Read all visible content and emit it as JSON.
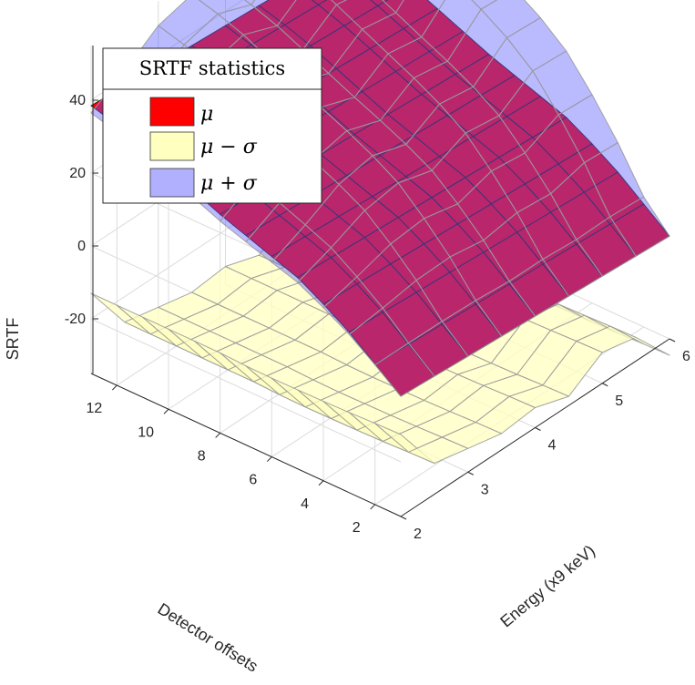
{
  "chart_data": {
    "type": "surface3d",
    "title": "",
    "xlabel": "Energy (x9 keV)",
    "ylabel": "Detector offsets",
    "zlabel": "SRTF",
    "x_ticks": [
      "2",
      "3",
      "4",
      "5",
      "6"
    ],
    "y_ticks": [
      "2",
      "4",
      "6",
      "8",
      "10",
      "12"
    ],
    "z_ticks": [
      "-20",
      "0",
      "20",
      "40"
    ],
    "xlim": [
      2,
      6
    ],
    "ylim": [
      1,
      13
    ],
    "zlim": [
      -35,
      55
    ],
    "energy": [
      2,
      2.5,
      3,
      3.5,
      4,
      4.5,
      5,
      5.5,
      6
    ],
    "offsets": [
      1,
      2,
      3,
      4,
      5,
      6,
      7,
      8,
      9,
      10,
      11,
      12,
      13
    ],
    "legend": {
      "title": "SRTF statistics",
      "entries": [
        "μ",
        "μ − σ",
        "μ + σ"
      ]
    },
    "series": [
      {
        "name": "μ",
        "color": "#ff0000",
        "mean_by_offset": [
          -2,
          3.5,
          9,
          13.5,
          17.5,
          20,
          22.5,
          25,
          28,
          31,
          34,
          36.5,
          38.5
        ],
        "energy_trend": [
          0,
          -0.6,
          -1.2,
          -1.8,
          -2.4,
          -3.0,
          -3.6,
          -4.2,
          -4.8
        ]
      },
      {
        "name": "μ − σ",
        "color": "#ffffc0",
        "profile_by_energy": [
          -13,
          -27,
          -29,
          -31,
          -30,
          -33,
          -27,
          -29,
          -40
        ],
        "offset_trend": [
          0.5,
          0.3,
          0,
          -0.2,
          -0.3,
          -0.4,
          -0.3,
          0,
          0,
          0,
          0,
          0,
          0
        ]
      },
      {
        "name": "μ + σ",
        "color": "#b0b0ff",
        "profile_by_energy": [
          -2,
          4,
          11,
          14,
          11,
          18,
          17,
          27,
          27
        ],
        "offset_steepness": [
          0,
          0.3,
          1.2,
          2,
          2.7,
          3.2,
          3.5,
          3.7,
          3.8,
          3.9,
          4,
          4,
          4
        ]
      }
    ]
  }
}
